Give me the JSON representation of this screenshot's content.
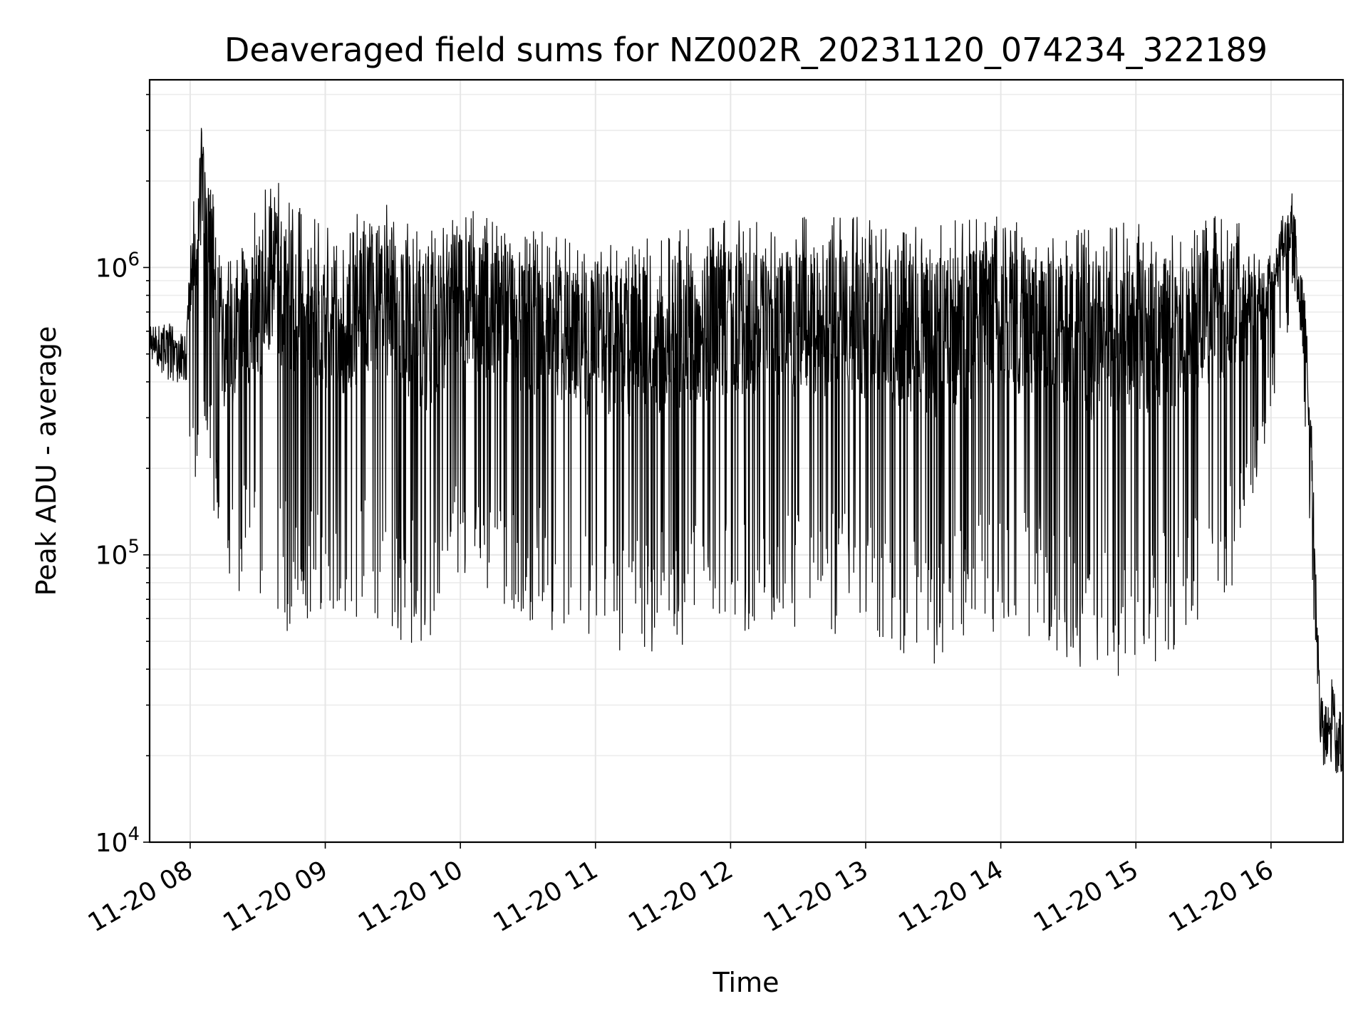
{
  "chart_data": {
    "type": "line",
    "title": "Deaveraged field sums for NZ002R_20231120_074234_322189",
    "xlabel": "Time",
    "ylabel": "Peak ADU - average",
    "yscale": "log",
    "xlim": [
      "2023-11-20 07:42",
      "2023-11-20 16:32"
    ],
    "ylim": [
      10000,
      4500000
    ],
    "grid": true,
    "x_tick_values": [
      "2023-11-20 08:00",
      "2023-11-20 09:00",
      "2023-11-20 10:00",
      "2023-11-20 11:00",
      "2023-11-20 12:00",
      "2023-11-20 13:00",
      "2023-11-20 14:00",
      "2023-11-20 15:00",
      "2023-11-20 16:00"
    ],
    "x_tick_labels": [
      "11-20 08",
      "11-20 09",
      "11-20 10",
      "11-20 11",
      "11-20 12",
      "11-20 13",
      "11-20 14",
      "11-20 15",
      "11-20 16"
    ],
    "y_ticks": [
      {
        "value": 10000,
        "base": "10",
        "exp": "4"
      },
      {
        "value": 100000,
        "base": "10",
        "exp": "5"
      },
      {
        "value": 1000000,
        "base": "10",
        "exp": "6"
      }
    ],
    "series": [
      {
        "color": "#000000",
        "envelope": [
          {
            "t": "07:42",
            "upper": 700000,
            "lower": 450000
          },
          {
            "t": "07:50",
            "upper": 760000,
            "lower": 340000
          },
          {
            "t": "07:58",
            "upper": 680000,
            "lower": 340000
          },
          {
            "t": "08:02",
            "upper": 2600000,
            "lower": 150000
          },
          {
            "t": "08:06",
            "upper": 3300000,
            "lower": 320000
          },
          {
            "t": "08:15",
            "upper": 1000000,
            "lower": 63000
          },
          {
            "t": "08:25",
            "upper": 1300000,
            "lower": 78000
          },
          {
            "t": "08:35",
            "upper": 2300000,
            "lower": 50000
          },
          {
            "t": "08:50",
            "upper": 1600000,
            "lower": 58000
          },
          {
            "t": "09:10",
            "upper": 1300000,
            "lower": 62000
          },
          {
            "t": "09:20",
            "upper": 2100000,
            "lower": 55000
          },
          {
            "t": "09:45",
            "upper": 1300000,
            "lower": 46000
          },
          {
            "t": "10:00",
            "upper": 1650000,
            "lower": 80000
          },
          {
            "t": "10:30",
            "upper": 1400000,
            "lower": 58000
          },
          {
            "t": "11:00",
            "upper": 1200000,
            "lower": 48000
          },
          {
            "t": "11:30",
            "upper": 1300000,
            "lower": 44000
          },
          {
            "t": "12:00",
            "upper": 1500000,
            "lower": 55000
          },
          {
            "t": "12:30",
            "upper": 1500000,
            "lower": 52000
          },
          {
            "t": "13:00",
            "upper": 1500000,
            "lower": 50000
          },
          {
            "t": "13:30",
            "upper": 1400000,
            "lower": 38000
          },
          {
            "t": "14:00",
            "upper": 1600000,
            "lower": 55000
          },
          {
            "t": "14:20",
            "upper": 1400000,
            "lower": 50000
          },
          {
            "t": "14:40",
            "upper": 1400000,
            "lower": 34000
          },
          {
            "t": "15:00",
            "upper": 1500000,
            "lower": 37000
          },
          {
            "t": "15:20",
            "upper": 1400000,
            "lower": 48000
          },
          {
            "t": "15:45",
            "upper": 1600000,
            "lower": 80000
          },
          {
            "t": "15:55",
            "upper": 1100000,
            "lower": 200000
          },
          {
            "t": "16:05",
            "upper": 1500000,
            "lower": 500000
          },
          {
            "t": "16:10",
            "upper": 2000000,
            "lower": 700000
          },
          {
            "t": "16:14",
            "upper": 1100000,
            "lower": 400000
          },
          {
            "t": "16:18",
            "upper": 300000,
            "lower": 90000
          },
          {
            "t": "16:22",
            "upper": 38000,
            "lower": 16000
          },
          {
            "t": "16:28",
            "upper": 38000,
            "lower": 13000
          },
          {
            "t": "16:32",
            "upper": 32000,
            "lower": 15000
          }
        ]
      }
    ]
  }
}
